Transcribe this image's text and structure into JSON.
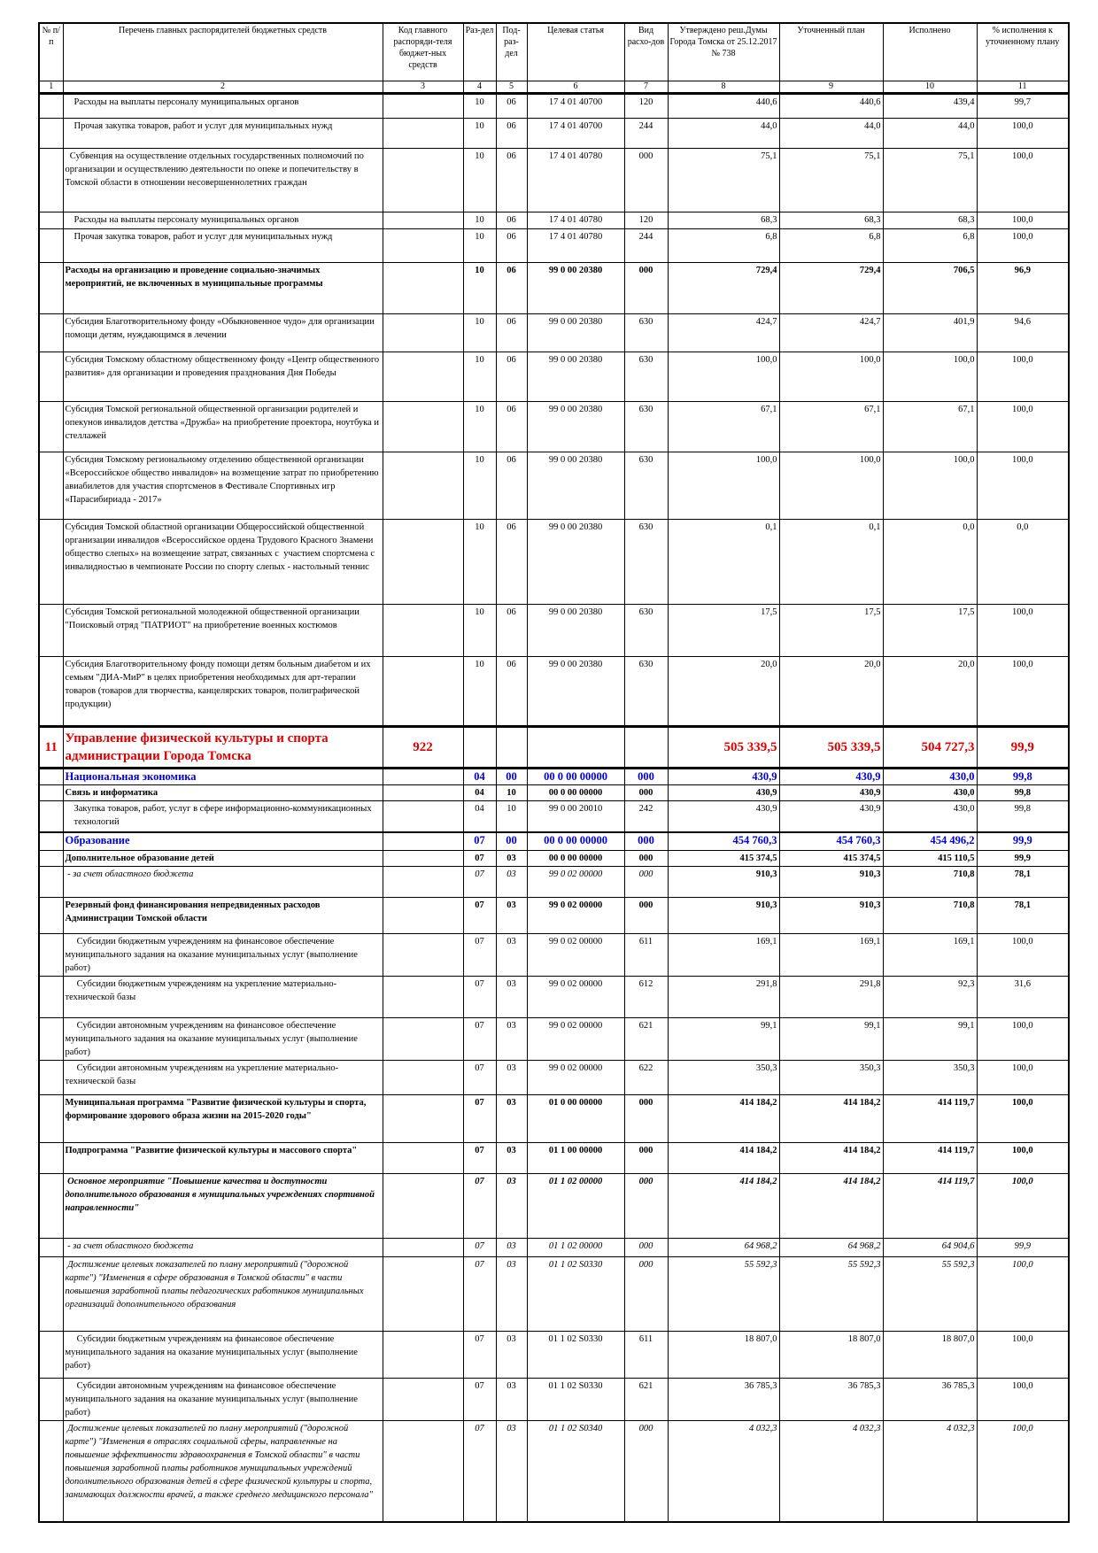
{
  "header": {
    "columns": [
      "№ п/п",
      "Перечень главных распорядителей бюджетных средств",
      "Код главного распоряди-теля бюджет-ных средств",
      "Раз-дел",
      "Под-раз-дел",
      "Целевая статья",
      "Вид расхо-дов",
      "Утверждено реш.Думы Города Томска от 25.12.2017 № 738",
      "Уточненный план",
      "Исполнено",
      "% исполнения к уточненному плану"
    ],
    "numbers": [
      "1",
      "2",
      "3",
      "4",
      "5",
      "6",
      "7",
      "8",
      "9",
      "10",
      "11"
    ]
  },
  "rows": [
    {
      "style": "normal",
      "indent": true,
      "no": "",
      "name": "Расходы на выплаты персоналу муниципальных органов",
      "code": "",
      "rz": "10",
      "pr": "06",
      "cs": "17 4 01 40700",
      "vr": "120",
      "approved": "440,6",
      "plan": "440,6",
      "done": "439,4",
      "pct": "99,7"
    },
    {
      "style": "normal",
      "indent": true,
      "no": "",
      "name": "Прочая закупка товаров, работ и услуг для муниципальных нужд",
      "code": "",
      "rz": "10",
      "pr": "06",
      "cs": "17 4 01 40700",
      "vr": "244",
      "approved": "44,0",
      "plan": "44,0",
      "done": "44,0",
      "pct": "100,0"
    },
    {
      "style": "normal",
      "indent": false,
      "no": "",
      "name": "  Субвенция на осуществление отдельных государственных полномочий по организации и осуществлению деятельности по опеке и попечительству в Томской области в отношении несовершеннолетних граждан",
      "code": "",
      "rz": "10",
      "pr": "06",
      "cs": "17 4 01 40780",
      "vr": "000",
      "approved": "75,1",
      "plan": "75,1",
      "done": "75,1",
      "pct": "100,0"
    },
    {
      "style": "normal",
      "indent": true,
      "no": "",
      "name": "Расходы на выплаты персоналу муниципальных органов",
      "code": "",
      "rz": "10",
      "pr": "06",
      "cs": "17 4 01 40780",
      "vr": "120",
      "approved": "68,3",
      "plan": "68,3",
      "done": "68,3",
      "pct": "100,0"
    },
    {
      "style": "normal",
      "indent": true,
      "no": "",
      "name": "Прочая закупка товаров, работ и услуг для муниципальных нужд",
      "code": "",
      "rz": "10",
      "pr": "06",
      "cs": "17 4 01 40780",
      "vr": "244",
      "approved": "6,8",
      "plan": "6,8",
      "done": "6,8",
      "pct": "100,0"
    },
    {
      "style": "bold",
      "indent": false,
      "no": "",
      "name": "Расходы на организацию и проведение социально-значимых мероприятий, не включенных в муниципальные программы",
      "code": "",
      "rz": "10",
      "pr": "06",
      "cs": "99 0 00 20380",
      "vr": "000",
      "approved": "729,4",
      "plan": "729,4",
      "done": "706,5",
      "pct": "96,9"
    },
    {
      "style": "normal",
      "indent": false,
      "no": "",
      "name": "Субсидия Благотворительному фонду «Обыкновенное чудо» для организации помощи детям, нуждающимся в лечении",
      "code": "",
      "rz": "10",
      "pr": "06",
      "cs": "99 0 00 20380",
      "vr": "630",
      "approved": "424,7",
      "plan": "424,7",
      "done": "401,9",
      "pct": "94,6"
    },
    {
      "style": "normal",
      "indent": false,
      "no": "",
      "name": "Субсидия Томскому областному общественному фонду «Центр общественного развития» для организации и проведения празднования Дня Победы",
      "code": "",
      "rz": "10",
      "pr": "06",
      "cs": "99 0 00 20380",
      "vr": "630",
      "approved": "100,0",
      "plan": "100,0",
      "done": "100,0",
      "pct": "100,0"
    },
    {
      "style": "normal",
      "indent": false,
      "no": "",
      "name": "Субсидия Томской региональной общественной организации родителей и опекунов инвалидов детства «Дружба» на приобретение проектора, ноутбука и стеллажей",
      "code": "",
      "rz": "10",
      "pr": "06",
      "cs": "99 0 00 20380",
      "vr": "630",
      "approved": "67,1",
      "plan": "67,1",
      "done": "67,1",
      "pct": "100,0"
    },
    {
      "style": "normal",
      "indent": false,
      "no": "",
      "name": "Субсидия Томскому региональному отделению общественной организации «Всероссийское общество инвалидов» на возмещение затрат по приобретению авиабилетов для участия спортсменов в Фестивале Спортивных игр «Парасибириада - 2017»",
      "code": "",
      "rz": "10",
      "pr": "06",
      "cs": "99 0 00 20380",
      "vr": "630",
      "approved": "100,0",
      "plan": "100,0",
      "done": "100,0",
      "pct": "100,0"
    },
    {
      "style": "normal",
      "indent": false,
      "no": "",
      "name": "Субсидия Томской областной организации Общероссийской общественной организации инвалидов «Всероссийское ордена Трудового Красного Знамени общество слепых» на возмещение затрат, связанных с  участием спортсмена с инвалидностью в чемпионате России по спорту слепых - настольный теннис",
      "code": "",
      "rz": "10",
      "pr": "06",
      "cs": "99 0 00 20380",
      "vr": "630",
      "approved": "0,1",
      "plan": "0,1",
      "done": "0,0",
      "pct": "0,0"
    },
    {
      "style": "normal",
      "indent": false,
      "no": "",
      "name": "Субсидия Томской региональной молодежной общественной организации \"Поисковый отряд \"ПАТРИОТ\" на приобретение военных костюмов",
      "code": "",
      "rz": "10",
      "pr": "06",
      "cs": "99 0 00 20380",
      "vr": "630",
      "approved": "17,5",
      "plan": "17,5",
      "done": "17,5",
      "pct": "100,0"
    },
    {
      "style": "normal",
      "indent": false,
      "no": "",
      "name": "Субсидия Благотворительному фонду помощи детям больным диабетом и их семьям \"ДИА-МиР\" в целях приобретения необходимых для арт-терапии товаров (товаров для творчества, канцелярских товаров, полиграфической продукции)",
      "code": "",
      "rz": "10",
      "pr": "06",
      "cs": "99 0 00 20380",
      "vr": "630",
      "approved": "20,0",
      "plan": "20,0",
      "done": "20,0",
      "pct": "100,0"
    },
    {
      "style": "red",
      "indent": false,
      "no": "11",
      "name": "Управление физической культуры и спорта администрации Города Томска",
      "code": "922",
      "rz": "",
      "pr": "",
      "cs": "",
      "vr": "",
      "approved": "505 339,5",
      "plan": "505 339,5",
      "done": "504 727,3",
      "pct": "99,9"
    },
    {
      "style": "blue",
      "indent": false,
      "no": "",
      "name": "Национальная экономика",
      "code": "",
      "rz": "04",
      "pr": "00",
      "cs": "00 0 00 00000",
      "vr": "000",
      "approved": "430,9",
      "plan": "430,9",
      "done": "430,0",
      "pct": "99,8"
    },
    {
      "style": "bold",
      "indent": false,
      "no": "",
      "name": "Связь и информатика",
      "code": "",
      "rz": "04",
      "pr": "10",
      "cs": "00 0 00 00000",
      "vr": "000",
      "approved": "430,9",
      "plan": "430,9",
      "done": "430,0",
      "pct": "99,8"
    },
    {
      "style": "normal",
      "indent": true,
      "no": "",
      "name": "Закупка товаров, работ, услуг в сфере информационно-коммуникационных технологий",
      "code": "",
      "rz": "04",
      "pr": "10",
      "cs": "99 0 00 20010",
      "vr": "242",
      "approved": "430,9",
      "plan": "430,9",
      "done": "430,0",
      "pct": "99,8"
    },
    {
      "style": "blue",
      "indent": false,
      "no": "",
      "name": "Образование",
      "code": "",
      "rz": "07",
      "pr": "00",
      "cs": "00 0 00 00000",
      "vr": "000",
      "approved": "454 760,3",
      "plan": "454 760,3",
      "done": "454 496,2",
      "pct": "99,9"
    },
    {
      "style": "bold",
      "indent": false,
      "no": "",
      "name": "Дополнительное образование детей",
      "code": "",
      "rz": "07",
      "pr": "03",
      "cs": "00 0 00 00000",
      "vr": "000",
      "approved": "415 374,5",
      "plan": "415 374,5",
      "done": "415 110,5",
      "pct": "99,9"
    },
    {
      "style": "it-bnum",
      "indent": false,
      "no": "",
      "name": " - за счет областного бюджета",
      "code": "",
      "rz": "07",
      "pr": "03",
      "cs": "99 0 02 00000",
      "vr": "000",
      "approved": "910,3",
      "plan": "910,3",
      "done": "710,8",
      "pct": "78,1"
    },
    {
      "style": "bold",
      "indent": false,
      "no": "",
      "name": "Резервный фонд финансирования непредвиденных расходов Администрации Томской области",
      "code": "",
      "rz": "07",
      "pr": "03",
      "cs": "99 0 02 00000",
      "vr": "000",
      "approved": "910,3",
      "plan": "910,3",
      "done": "710,8",
      "pct": "78,1"
    },
    {
      "style": "normal",
      "indent": false,
      "no": "",
      "name": "     Субсидии бюджетным учреждениям на финансовое обеспечение муниципального задания на оказание муниципальных услуг (выполнение работ)",
      "code": "",
      "rz": "07",
      "pr": "03",
      "cs": "99 0 02 00000",
      "vr": "611",
      "approved": "169,1",
      "plan": "169,1",
      "done": "169,1",
      "pct": "100,0"
    },
    {
      "style": "normal",
      "indent": false,
      "no": "",
      "name": "     Субсидии бюджетным учреждениям на укрепление материально-технической базы",
      "code": "",
      "rz": "07",
      "pr": "03",
      "cs": "99 0 02 00000",
      "vr": "612",
      "approved": "291,8",
      "plan": "291,8",
      "done": "92,3",
      "pct": "31,6"
    },
    {
      "style": "normal",
      "indent": false,
      "no": "",
      "name": "     Субсидии автономным учреждениям на финансовое обеспечение муниципального задания на оказание муниципальных услуг (выполнение работ)",
      "code": "",
      "rz": "07",
      "pr": "03",
      "cs": "99 0 02 00000",
      "vr": "621",
      "approved": "99,1",
      "plan": "99,1",
      "done": "99,1",
      "pct": "100,0"
    },
    {
      "style": "normal",
      "indent": false,
      "no": "",
      "name": "     Субсидии автономным учреждениям на укрепление материально-технической базы",
      "code": "",
      "rz": "07",
      "pr": "03",
      "cs": "99 0 02 00000",
      "vr": "622",
      "approved": "350,3",
      "plan": "350,3",
      "done": "350,3",
      "pct": "100,0"
    },
    {
      "style": "bold",
      "indent": false,
      "no": "",
      "name": "Муниципальная программа \"Развитие физической культуры и спорта, формирование здорового образа жизни на 2015-2020 годы\"",
      "code": "",
      "rz": "07",
      "pr": "03",
      "cs": "01 0 00 00000",
      "vr": "000",
      "approved": "414 184,2",
      "plan": "414 184,2",
      "done": "414 119,7",
      "pct": "100,0"
    },
    {
      "style": "bold",
      "indent": false,
      "no": "",
      "name": "Подпрограмма \"Развитие физической культуры и массового спорта\"",
      "code": "",
      "rz": "07",
      "pr": "03",
      "cs": "01 1 00 00000",
      "vr": "000",
      "approved": "414 184,2",
      "plan": "414 184,2",
      "done": "414 119,7",
      "pct": "100,0"
    },
    {
      "style": "bolditalic",
      "indent": false,
      "no": "",
      "name": " Основное мероприятие \"Повышение качества и доступности дополнительного образования в муниципальных учреждениях спортивной направленности\"",
      "code": "",
      "rz": "07",
      "pr": "03",
      "cs": "01 1 02 00000",
      "vr": "000",
      "approved": "414 184,2",
      "plan": "414 184,2",
      "done": "414 119,7",
      "pct": "100,0"
    },
    {
      "style": "italic",
      "indent": false,
      "no": "",
      "name": " - за счет областного бюджета",
      "code": "",
      "rz": "07",
      "pr": "03",
      "cs": "01 1 02 00000",
      "vr": "000",
      "approved": "64 968,2",
      "plan": "64 968,2",
      "done": "64 904,6",
      "pct": "99,9"
    },
    {
      "style": "italic",
      "indent": false,
      "no": "",
      "name": " Достижение целевых показателей по плану мероприятий (\"дорожной карте\") \"Изменения в сфере образования в Томской области\" в части повышения заработной платы педагогических работников муниципальных организаций дополнительного образования",
      "code": "",
      "rz": "07",
      "pr": "03",
      "cs": "01 1 02 S0330",
      "vr": "000",
      "approved": "55 592,3",
      "plan": "55 592,3",
      "done": "55 592,3",
      "pct": "100,0"
    },
    {
      "style": "normal",
      "indent": false,
      "no": "",
      "name": "     Субсидии бюджетным учреждениям на финансовое обеспечение муниципального задания на оказание муниципальных услуг (выполнение работ)",
      "code": "",
      "rz": "07",
      "pr": "03",
      "cs": "01 1 02 S0330",
      "vr": "611",
      "approved": "18 807,0",
      "plan": "18 807,0",
      "done": "18 807,0",
      "pct": "100,0"
    },
    {
      "style": "normal",
      "indent": false,
      "no": "",
      "name": "     Субсидии автономным учреждениям на финансовое обеспечение муниципального задания на оказание муниципальных услуг (выполнение работ)",
      "code": "",
      "rz": "07",
      "pr": "03",
      "cs": "01 1 02 S0330",
      "vr": "621",
      "approved": "36 785,3",
      "plan": "36 785,3",
      "done": "36 785,3",
      "pct": "100,0"
    },
    {
      "style": "italic",
      "indent": false,
      "no": "",
      "name": " Достижение целевых показателей по плану мероприятий (\"дорожной карте\") \"Изменения в отраслях социальной сферы, направленные на повышение эффективности здравоохранения в Томской области\" в части повышения заработной платы работников муниципальных учреждений дополнительного образования детей в сфере физической культуры и спорта, занимающих должности врачей, а также среднего медицинского персонала\"",
      "code": "",
      "rz": "07",
      "pr": "03",
      "cs": "01 1 02 S0340",
      "vr": "000",
      "approved": "4 032,3",
      "plan": "4 032,3",
      "done": "4 032,3",
      "pct": "100,0"
    }
  ],
  "colors": {
    "section_red": "#e00000",
    "subsection_blue": "#0000e0"
  }
}
